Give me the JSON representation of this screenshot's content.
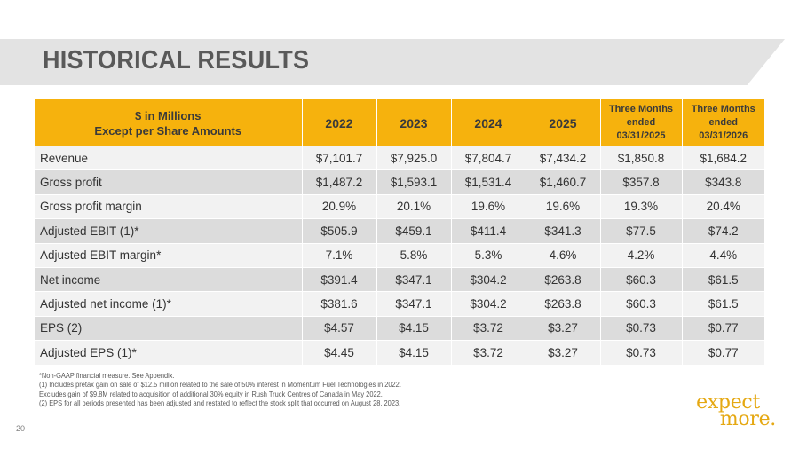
{
  "slide": {
    "title": "HISTORICAL RESULTS",
    "page_number": "20"
  },
  "table": {
    "header_label": [
      "$ in Millions",
      "Except per Share Amounts"
    ],
    "years": [
      "2022",
      "2023",
      "2024",
      "2025"
    ],
    "q1": [
      "Three Months",
      "ended",
      "03/31/2025"
    ],
    "q2": [
      "Three Months",
      "ended",
      "03/31/2026"
    ],
    "rows": [
      {
        "label": "Revenue",
        "values": [
          "$7,101.7",
          "$7,925.0",
          "$7,804.7",
          "$7,434.2",
          "$1,850.8",
          "$1,684.2"
        ]
      },
      {
        "label": "Gross profit",
        "values": [
          "$1,487.2",
          "$1,593.1",
          "$1,531.4",
          "$1,460.7",
          "$357.8",
          "$343.8"
        ]
      },
      {
        "label": "Gross profit margin",
        "values": [
          "20.9%",
          "20.1%",
          "19.6%",
          "19.6%",
          "19.3%",
          "20.4%"
        ]
      },
      {
        "label": "Adjusted EBIT (1)*",
        "values": [
          "$505.9",
          "$459.1",
          "$411.4",
          "$341.3",
          "$77.5",
          "$74.2"
        ]
      },
      {
        "label": "Adjusted EBIT margin*",
        "values": [
          "7.1%",
          "5.8%",
          "5.3%",
          "4.6%",
          "4.2%",
          "4.4%"
        ]
      },
      {
        "label": "Net income",
        "values": [
          "$391.4",
          "$347.1",
          "$304.2",
          "$263.8",
          "$60.3",
          "$61.5"
        ]
      },
      {
        "label": "Adjusted net income (1)*",
        "values": [
          "$381.6",
          "$347.1",
          "$304.2",
          "$263.8",
          "$60.3",
          "$61.5"
        ]
      },
      {
        "label": "EPS (2)",
        "values": [
          "$4.57",
          "$4.15",
          "$3.72",
          "$3.27",
          "$0.73",
          "$0.77"
        ]
      },
      {
        "label": "Adjusted EPS (1)*",
        "values": [
          "$4.45",
          "$4.15",
          "$3.72",
          "$3.27",
          "$0.73",
          "$0.77"
        ]
      }
    ]
  },
  "footnotes": [
    "*Non-GAAP financial measure.  See Appendix.",
    "(1)  Includes pretax gain on sale of $12.5 million related to the sale of 50% interest in Momentum Fuel Technologies in 2022.",
    "Excludes gain of $9.8M related to acquisition of additional 30% equity in Rush Truck  Centres of Canada in May 2022.",
    "(2)  EPS for all periods presented has been adjusted and restated to reflect the stock split that occurred on August 28, 2023."
  ],
  "logo": {
    "line1": "expect",
    "line2": "more."
  },
  "colors": {
    "header_fill": "#f6b20d",
    "row_light": "#f2f2f2",
    "row_dark": "#dcdcdc",
    "title_band": "#e3e3e3",
    "logo": "#e5a812"
  }
}
